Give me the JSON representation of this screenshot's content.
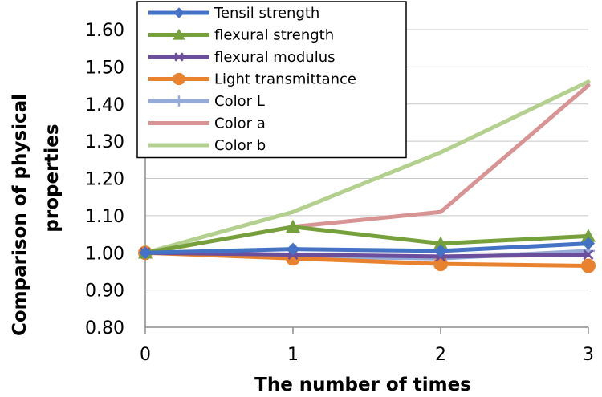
{
  "chart_data": {
    "type": "line",
    "x": [
      0,
      1,
      2,
      3
    ],
    "xlabel": "The number of times",
    "ylabel_lines": [
      "Comparison of physical",
      "properties"
    ],
    "xlim": [
      0,
      3
    ],
    "ylim": [
      0.8,
      1.6
    ],
    "yticks": [
      "0.80",
      "0.90",
      "1.00",
      "1.10",
      "1.20",
      "1.30",
      "1.40",
      "1.50",
      "1.60"
    ],
    "xticks": [
      "0",
      "1",
      "2",
      "3"
    ],
    "grid": "horizontal",
    "legend_position": "top-left",
    "series": [
      {
        "name": "Tensil strength",
        "color": "#4472C4",
        "marker": "diamond",
        "values": [
          1.0,
          1.01,
          1.005,
          1.025
        ]
      },
      {
        "name": "flexural strength",
        "color": "#76A03C",
        "marker": "triangle",
        "values": [
          1.0,
          1.07,
          1.025,
          1.045
        ]
      },
      {
        "name": "flexural modulus",
        "color": "#6B4E9C",
        "marker": "x",
        "values": [
          1.0,
          0.995,
          0.99,
          0.995
        ]
      },
      {
        "name": "Light transmittance",
        "color": "#E8822E",
        "marker": "circle",
        "values": [
          1.0,
          0.985,
          0.97,
          0.965
        ]
      },
      {
        "name": "Color L",
        "color": "#95AAD6",
        "marker": "plus",
        "values": [
          1.0,
          0.99,
          0.985,
          1.005
        ]
      },
      {
        "name": "Color a",
        "color": "#D89494",
        "marker": "none",
        "values": [
          1.0,
          1.07,
          1.11,
          1.45
        ]
      },
      {
        "name": "Color b",
        "color": "#B3D08E",
        "marker": "none",
        "values": [
          1.0,
          1.11,
          1.27,
          1.46
        ]
      }
    ]
  }
}
